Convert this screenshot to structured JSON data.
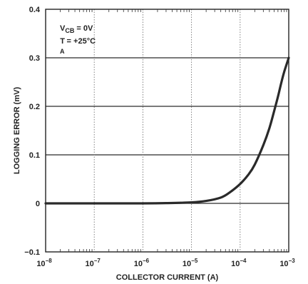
{
  "chart_data": {
    "type": "line",
    "title": "",
    "xlabel": "COLLECTOR CURRENT (A)",
    "ylabel": "LOGGING ERROR (mV)",
    "x_scale": "log",
    "xlim": [
      1e-08,
      0.001
    ],
    "ylim": [
      -0.1,
      0.4
    ],
    "x_ticks": [
      {
        "value": 1e-08,
        "base": "10",
        "exp": "−8"
      },
      {
        "value": 1e-07,
        "base": "10",
        "exp": "−7"
      },
      {
        "value": 1e-06,
        "base": "10",
        "exp": "−6"
      },
      {
        "value": 1e-05,
        "base": "10",
        "exp": "−5"
      },
      {
        "value": 0.0001,
        "base": "10",
        "exp": "−4"
      },
      {
        "value": 0.001,
        "base": "10",
        "exp": "−3"
      }
    ],
    "y_ticks": [
      {
        "value": -0.1,
        "label": "−0.1"
      },
      {
        "value": 0,
        "label": "0"
      },
      {
        "value": 0.1,
        "label": "0.1"
      },
      {
        "value": 0.2,
        "label": "0.2"
      },
      {
        "value": 0.3,
        "label": "0.3"
      },
      {
        "value": 0.4,
        "label": "0.4"
      }
    ],
    "grid": true,
    "annotations": {
      "line1": {
        "main": "V",
        "sub": "CB",
        "rest": " = 0V"
      },
      "line2": {
        "main": "T",
        "sub": "A",
        "rest": " = +25°C"
      }
    },
    "series": [
      {
        "color": "#2a2a2a",
        "x": [
          1e-08,
          1e-07,
          1e-06,
          3e-06,
          1e-05,
          2e-05,
          4e-05,
          6e-05,
          0.0001,
          0.00015,
          0.0002,
          0.0003,
          0.0004,
          0.0005,
          0.0006,
          0.0007,
          0.0008,
          0.001
        ],
        "y": [
          0.0,
          0.0,
          0.0,
          0.0005,
          0.002,
          0.005,
          0.012,
          0.022,
          0.04,
          0.06,
          0.08,
          0.12,
          0.155,
          0.19,
          0.22,
          0.248,
          0.27,
          0.3
        ]
      }
    ]
  }
}
